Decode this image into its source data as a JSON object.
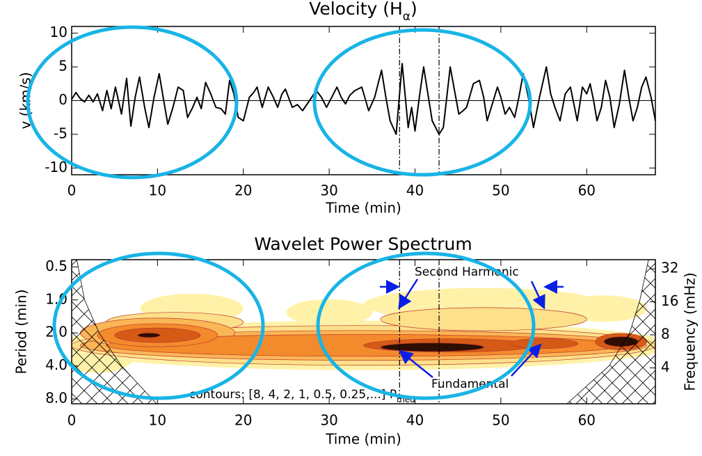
{
  "chart_data": [
    {
      "type": "line",
      "title": "Velocity (H",
      "title_sub": "α",
      "title_tail": ")",
      "ylabel": "v (km/s)",
      "xlabel": "Time (min)",
      "xlim": [
        0,
        68
      ],
      "xticks": [
        0,
        10,
        20,
        30,
        40,
        50,
        60
      ],
      "ylim": [
        -11,
        11
      ],
      "yticks": [
        -10,
        -5,
        0,
        5,
        10
      ],
      "hline": 0,
      "vlines": [
        38.2,
        42.8
      ],
      "color": "#000000",
      "x": [
        0,
        0.5,
        1,
        1.5,
        2,
        2.5,
        3,
        3.6,
        4.1,
        4.6,
        5.1,
        5.8,
        6.4,
        6.9,
        7.4,
        7.9,
        8.5,
        9.0,
        9.6,
        10.2,
        10.7,
        11.2,
        11.8,
        12.4,
        13.0,
        13.5,
        14.1,
        14.6,
        15.1,
        15.6,
        16.2,
        16.8,
        17.4,
        17.9,
        18.4,
        18.9,
        19.4,
        20.0,
        20.7,
        21.2,
        21.6,
        22.2,
        22.9,
        23.5,
        24.0,
        24.5,
        24.9,
        25.7,
        26.3,
        26.9,
        27.7,
        28.5,
        29.1,
        29.7,
        30.3,
        30.9,
        31.4,
        31.9,
        32.4,
        33.0,
        33.8,
        34.6,
        35.3,
        36.1,
        36.6,
        37.1,
        37.8,
        38.5,
        39.2,
        39.6,
        40.0,
        40.5,
        41.0,
        41.5,
        42.0,
        42.8,
        43.3,
        44.1,
        44.6,
        45.1,
        45.6,
        46.0,
        46.8,
        47.5,
        48.0,
        48.4,
        49.0,
        49.6,
        50.0,
        50.5,
        51.0,
        51.6,
        52.1,
        52.6,
        53.2,
        53.8,
        54.5,
        55.3,
        55.8,
        56.3,
        56.9,
        57.5,
        58.1,
        58.9,
        59.5,
        60.0,
        60.4,
        60.8,
        61.2,
        61.7,
        62.2,
        62.7,
        63.2,
        63.8,
        64.4,
        64.9,
        65.4,
        65.9,
        66.4,
        66.9,
        67.5,
        68.0
      ],
      "values": [
        0.2,
        1.2,
        0.3,
        -0.2,
        0.8,
        -0.2,
        1.0,
        -1.5,
        1.5,
        -1.2,
        2.0,
        -2.0,
        3.3,
        -3.8,
        0.5,
        3.5,
        -1.0,
        -4.0,
        0.5,
        4.0,
        0.2,
        -3.5,
        -1.0,
        2.0,
        1.5,
        -2.5,
        -1.0,
        0.5,
        -1.2,
        2.7,
        1.0,
        -1.0,
        -1.2,
        -2.0,
        3.0,
        1.0,
        -2.5,
        -3.0,
        0.5,
        1.2,
        2.0,
        -1.0,
        2.0,
        0.5,
        -1.0,
        1.0,
        1.7,
        -1.0,
        -0.6,
        -1.5,
        0.0,
        1.5,
        0.5,
        -1.0,
        0.5,
        2.0,
        0.5,
        -0.5,
        0.8,
        1.5,
        2.0,
        -1.5,
        0.5,
        4.5,
        0.5,
        -3.0,
        -5.0,
        5.5,
        -4.0,
        -1.0,
        -4.5,
        0.5,
        5.0,
        1.0,
        -3.0,
        -5.0,
        -4.0,
        5.0,
        1.5,
        -2.0,
        -1.5,
        -1.0,
        2.5,
        3.0,
        0.5,
        -3.0,
        -0.5,
        2.0,
        0.5,
        -2.0,
        -1.0,
        -2.5,
        0.5,
        4.0,
        0.5,
        -4.0,
        0.5,
        5.0,
        1.0,
        -1.0,
        -3.0,
        1.0,
        2.0,
        -3.0,
        2.0,
        1.0,
        2.5,
        0.0,
        -3.0,
        -1.0,
        3.0,
        0.5,
        -4.0,
        -0.5,
        4.5,
        0.5,
        -3.0,
        -1.0,
        2.0,
        3.5,
        0.5,
        -3.0
      ]
    },
    {
      "type": "wavelet",
      "title": "Wavelet Power Spectrum",
      "ylabel": "Period (min)",
      "y2label": "Frequency (mHz)",
      "xlabel": "Time (min)",
      "xlim": [
        0,
        68
      ],
      "xticks": [
        0,
        10,
        20,
        30,
        40,
        50,
        60
      ],
      "ylog": true,
      "ylim": [
        8.85,
        0.43
      ],
      "yticks": [
        0.5,
        {
          "value": 1,
          "label": "1.0"
        },
        {
          "value": 2,
          "label": "2.0"
        },
        {
          "value": 4,
          "label": "4.0"
        },
        {
          "value": 8,
          "label": "8.0"
        }
      ],
      "y2lim": [
        1.88,
        38.8
      ],
      "y2ticks": [
        4,
        8,
        16,
        32
      ],
      "vlines": [
        38.2,
        42.8
      ],
      "annotations": [
        "Second Harmonic",
        "Fundamental"
      ],
      "contour_note": "contours: [8, 4, 2, 1, 0.5, 0.25,...] P",
      "contour_note_sub": "med",
      "levels": [
        0.25,
        0.5,
        1,
        2,
        4,
        8
      ],
      "level_colors": [
        "#fff2a8",
        "#fde08a",
        "#fbb656",
        "#f38a2c",
        "#d45a16",
        "#2e0e02"
      ],
      "power_blobs": [
        {
          "x": 34,
          "y": 2.6,
          "rx": 36,
          "ry": 0.75,
          "level": 0.25
        },
        {
          "x": 14,
          "y": 1.2,
          "rx": 6,
          "ry": 0.45,
          "level": 0.25
        },
        {
          "x": 48,
          "y": 1.1,
          "rx": 14,
          "ry": 0.5,
          "level": 0.25
        },
        {
          "x": 30,
          "y": 1.3,
          "rx": 5,
          "ry": 0.4,
          "level": 0.25
        },
        {
          "x": 62,
          "y": 1.2,
          "rx": 5,
          "ry": 0.4,
          "level": 0.25
        },
        {
          "x": 3,
          "y": 3.5,
          "rx": 4,
          "ry": 0.4,
          "level": 0.25
        },
        {
          "x": 34,
          "y": 2.6,
          "rx": 34,
          "ry": 0.6,
          "level": 0.5
        },
        {
          "x": 12,
          "y": 1.6,
          "rx": 8,
          "ry": 0.3,
          "level": 0.5
        },
        {
          "x": 48,
          "y": 1.5,
          "rx": 12,
          "ry": 0.35,
          "level": 0.5
        },
        {
          "x": 34,
          "y": 2.6,
          "rx": 33,
          "ry": 0.45,
          "level": 1
        },
        {
          "x": 10,
          "y": 2.0,
          "rx": 9,
          "ry": 0.45,
          "level": 1
        },
        {
          "x": 34,
          "y": 2.6,
          "rx": 30,
          "ry": 0.33,
          "level": 2
        },
        {
          "x": 10,
          "y": 2.1,
          "rx": 7,
          "ry": 0.35,
          "level": 2
        },
        {
          "x": 10,
          "y": 2.1,
          "rx": 5,
          "ry": 0.22,
          "level": 4
        },
        {
          "x": 44,
          "y": 2.6,
          "rx": 10,
          "ry": 0.2,
          "level": 4
        },
        {
          "x": 64,
          "y": 2.4,
          "rx": 3,
          "ry": 0.25,
          "level": 4
        },
        {
          "x": 55,
          "y": 2.5,
          "rx": 4,
          "ry": 0.15,
          "level": 4
        },
        {
          "x": 9,
          "y": 2.1,
          "rx": 1.3,
          "ry": 0.07,
          "level": 8
        },
        {
          "x": 42,
          "y": 2.7,
          "rx": 6,
          "ry": 0.13,
          "level": 8
        },
        {
          "x": 64,
          "y": 2.4,
          "rx": 2,
          "ry": 0.15,
          "level": 8
        }
      ],
      "coi": [
        {
          "x": [
            0.6,
            1.5,
            3.2,
            5.8,
            9.9
          ],
          "y": [
            0.43,
            1.0,
            2.0,
            4.0,
            8.85
          ]
        },
        {
          "x": [
            67.2,
            66.2,
            65.0,
            62.6,
            57.7
          ],
          "y": [
            0.43,
            1.0,
            2.0,
            4.0,
            8.85
          ]
        }
      ]
    }
  ]
}
